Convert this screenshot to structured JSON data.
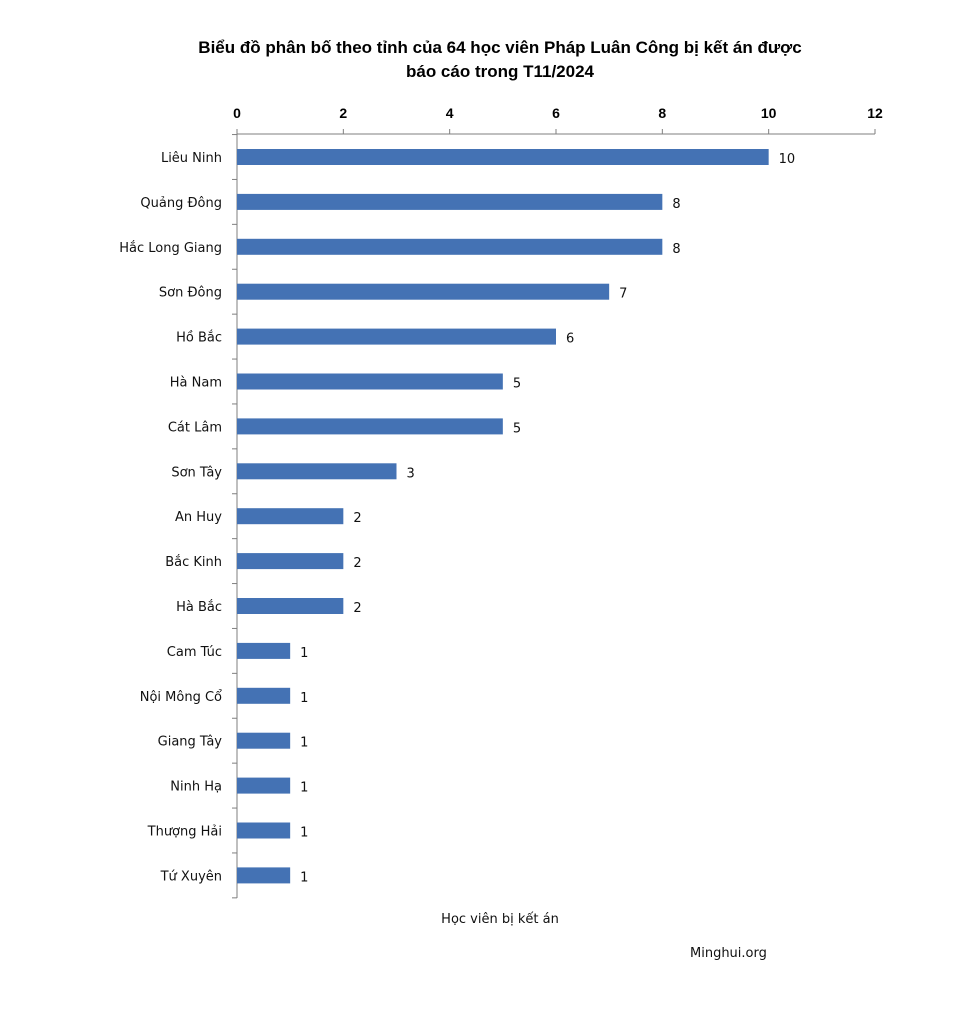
{
  "chart_data": {
    "type": "bar",
    "orientation": "horizontal",
    "title": "Biểu đồ phân bố theo tỉnh của 64 học viên Pháp Luân Công bị kết án được báo cáo trong T11/2024",
    "title_line1": "Biểu đồ phân bố theo tỉnh của 64 học viên Pháp Luân Công bị kết án được",
    "title_line2": "báo cáo trong T11/2024",
    "xlabel": "Học viên bị kết án",
    "ylabel": "",
    "xlim": [
      0,
      12
    ],
    "x_ticks": [
      0,
      2,
      4,
      6,
      8,
      10,
      12
    ],
    "x_axis_position": "top",
    "bar_color": "#4472b4",
    "categories": [
      "Liêu Ninh",
      "Quảng Đông",
      "Hắc Long Giang",
      "Sơn Đông",
      "Hồ Bắc",
      "Hà Nam",
      "Cát Lâm",
      "Sơn Tây",
      "An Huy",
      "Bắc Kinh",
      "Hà Bắc",
      "Cam Túc",
      "Nội Mông Cổ",
      "Giang Tây",
      "Ninh Hạ",
      "Thượng Hải",
      "Tứ Xuyên"
    ],
    "values": [
      10,
      8,
      8,
      7,
      6,
      5,
      5,
      3,
      2,
      2,
      2,
      1,
      1,
      1,
      1,
      1,
      1
    ]
  },
  "source": "Minghui.org"
}
